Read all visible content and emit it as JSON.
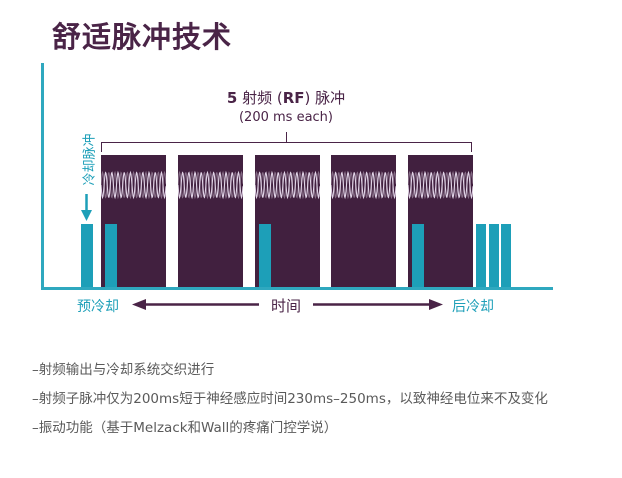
{
  "page_title": "舒适脉冲技术",
  "chart_data": {
    "type": "timing-diagram",
    "title": "5 射频 (RF) 脉冲 (200 ms each)",
    "annotation": {
      "count_bold": "5",
      "mid_text": " 射频 (",
      "rf_bold": "RF",
      "end_text": ") 脉冲",
      "duration_line": "(200 ms each)"
    },
    "cooling_pulse_label": "冷却脉冲",
    "x_axis": {
      "label": "时间",
      "pre_cooling_label": "预冷却",
      "post_cooling_label": "后冷却"
    },
    "rf_pulses": {
      "count": 5,
      "duration_ms_each": 200
    },
    "cooling_pulses": {
      "pre_count": 1,
      "interleaved_with_rf_pulse_numbers": [
        1,
        3,
        5
      ],
      "post_count": 3
    }
  },
  "notes": [
    "–射频输出与冷却系统交织进行",
    "–射频子脉冲仅为200ms短于神经感应时间230ms–250ms，以致神经电位来不及变化",
    "–振动功能（基于Melzack和Wall的疼痛门控学说）"
  ],
  "colors": {
    "plum": "#41203f",
    "plum_text": "#4a2447",
    "teal": "#1d9fb8",
    "axis_teal": "#2fa8bf",
    "wave": "#eadef0",
    "note_gray": "#5a5a5a"
  }
}
